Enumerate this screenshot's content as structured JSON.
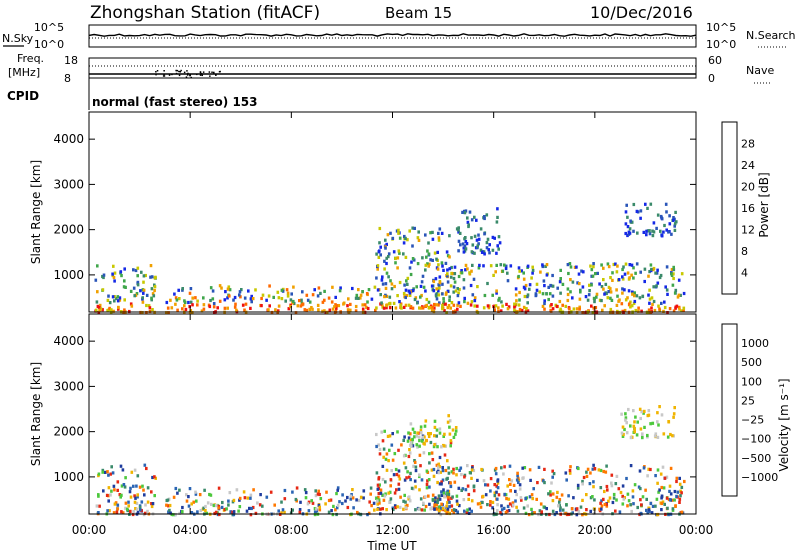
{
  "header": {
    "station": "Zhongshan Station (fitACF)",
    "beam": "Beam 15",
    "date": "10/Dec/2016"
  },
  "top_panels": {
    "nsky_label": "N.Sky",
    "nsearch_label": "N.Search",
    "noise_tick_top": "10^5",
    "noise_tick_bottom": "10^0",
    "noise_tick_top_right": "10^5",
    "noise_tick_bottom_right": "10^0",
    "freq_label_1": "Freq.",
    "freq_label_2": "[MHz]",
    "freq_tick_top": "18",
    "freq_tick_bottom": "8",
    "nave_label": "Nave",
    "nave_tick_top": "60",
    "nave_tick_bottom": "0",
    "cpid_label": "CPID",
    "cpid_text": "normal (fast stereo) 153"
  },
  "axes": {
    "ylabel": "Slant Range [km]",
    "xlabel": "Time UT",
    "yticks": [
      "1000",
      "2000",
      "3000",
      "4000"
    ],
    "xticks": [
      "00:00",
      "04:00",
      "08:00",
      "12:00",
      "16:00",
      "20:00",
      "00:00"
    ]
  },
  "power_scale": {
    "label": "Power [dB]",
    "ticks": [
      "4",
      "8",
      "12",
      "16",
      "20",
      "24",
      "28"
    ],
    "colors": [
      "#1428e6",
      "#2a55b8",
      "#3a8a6a",
      "#3fa64a",
      "#c8c800",
      "#f0a000",
      "#ff6a00",
      "#ee1010"
    ]
  },
  "velocity_scale": {
    "label": "Velocity [m s⁻¹]",
    "ticks": [
      "1000",
      "500",
      "100",
      "25",
      "−25",
      "−100",
      "−500",
      "−1000"
    ],
    "colors": [
      "#1e3c9e",
      "#2a64b4",
      "#3a8a6a",
      "#4cc83c",
      "#c8c8c8",
      "#f0b400",
      "#ff7800",
      "#e62814",
      "#ff0000"
    ]
  },
  "chart_data": [
    {
      "type": "heatmap",
      "title": "Power",
      "xlabel": "Time UT",
      "ylabel": "Slant Range [km]",
      "xlim": [
        0,
        24
      ],
      "ylim": [
        180,
        4600
      ],
      "colorbar_label": "Power [dB]",
      "colorbar_ticks": [
        4,
        8,
        12,
        16,
        20,
        24,
        28
      ],
      "regions": [
        {
          "t": [
            0.2,
            2.6
          ],
          "r": [
            200,
            1300
          ],
          "level": "mixed"
        },
        {
          "t": [
            3.0,
            11.5
          ],
          "r": [
            200,
            800
          ],
          "level": "high"
        },
        {
          "t": [
            11.3,
            14.3
          ],
          "r": [
            300,
            2100
          ],
          "level": "mixed"
        },
        {
          "t": [
            13.5,
            23.5
          ],
          "r": [
            200,
            1300
          ],
          "level": "mixed"
        },
        {
          "t": [
            14.5,
            16.3
          ],
          "r": [
            1500,
            2500
          ],
          "level": "low"
        },
        {
          "t": [
            21.0,
            23.2
          ],
          "r": [
            1900,
            2600
          ],
          "level": "low"
        }
      ]
    },
    {
      "type": "heatmap",
      "title": "Velocity",
      "xlabel": "Time UT",
      "ylabel": "Slant Range [km]",
      "xlim": [
        0,
        24
      ],
      "ylim": [
        180,
        4600
      ],
      "colorbar_label": "Velocity [m s⁻¹]",
      "colorbar_ticks": [
        1000,
        500,
        100,
        25,
        -25,
        -100,
        -500,
        -1000
      ],
      "regions": [
        {
          "t": [
            0.2,
            2.6
          ],
          "r": [
            200,
            1300
          ],
          "level": "mixed"
        },
        {
          "t": [
            3.0,
            11.5
          ],
          "r": [
            200,
            800
          ],
          "level": "mixed"
        },
        {
          "t": [
            11.3,
            14.3
          ],
          "r": [
            300,
            2100
          ],
          "level": "mixed"
        },
        {
          "t": [
            13.5,
            23.5
          ],
          "r": [
            200,
            1300
          ],
          "level": "mixed"
        },
        {
          "t": [
            12.5,
            14.5
          ],
          "r": [
            1700,
            2400
          ],
          "level": "near-zero"
        },
        {
          "t": [
            21.0,
            23.2
          ],
          "r": [
            1900,
            2600
          ],
          "level": "near-zero"
        }
      ]
    }
  ]
}
